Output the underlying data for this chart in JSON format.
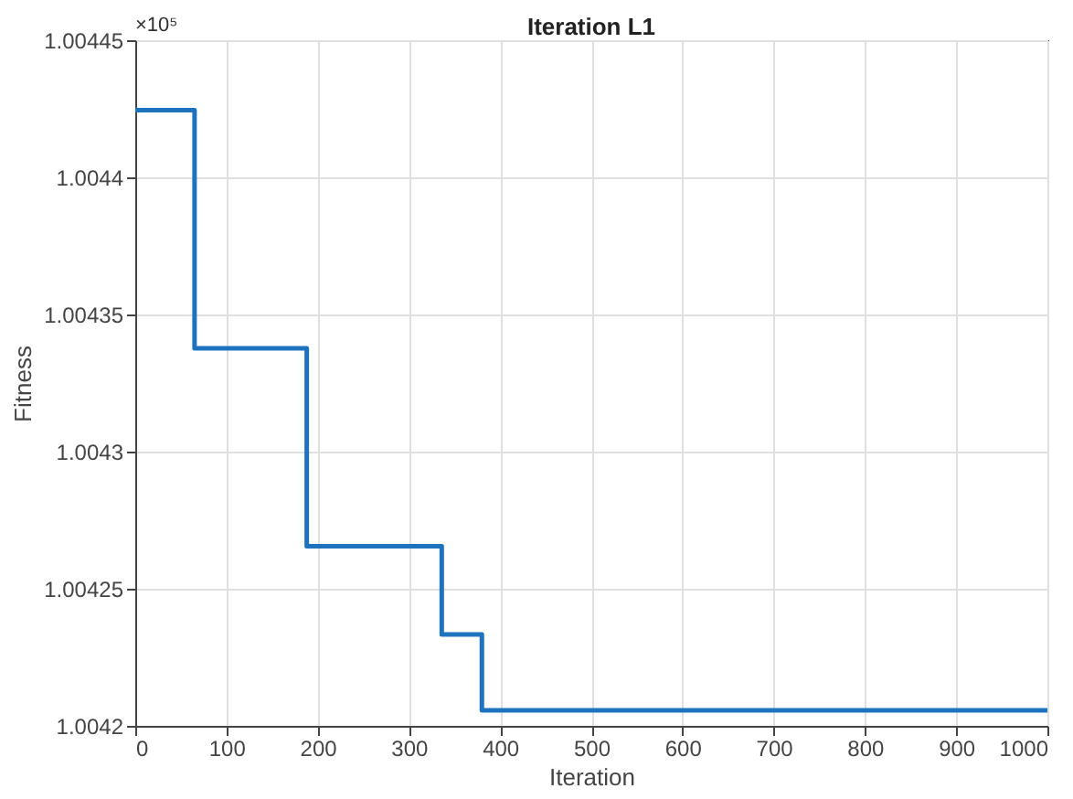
{
  "chart_data": {
    "type": "step",
    "title": "Iteration L1",
    "xlabel": "Iteration",
    "ylabel": "Fitness",
    "annotations": [
      "×10⁵"
    ],
    "x": [
      0,
      65,
      188,
      336,
      380,
      1000
    ],
    "series": [
      {
        "color": "#1f72bd",
        "values": [
          1.0044245,
          1.0043377,
          1.0042655,
          1.0042333,
          1.0042057,
          1.0042057
        ]
      }
    ],
    "xlim": [
      0,
      1000
    ],
    "xticks": [
      0,
      100,
      200,
      300,
      400,
      500,
      600,
      700,
      800,
      900,
      1000
    ],
    "ylim": [
      1.0042,
      1.00445
    ],
    "yticks": [
      1.0042,
      1.00425,
      1.0043,
      1.00435,
      1.0044,
      1.00445
    ],
    "grid": true,
    "marker": "none",
    "line_style": "solid"
  }
}
